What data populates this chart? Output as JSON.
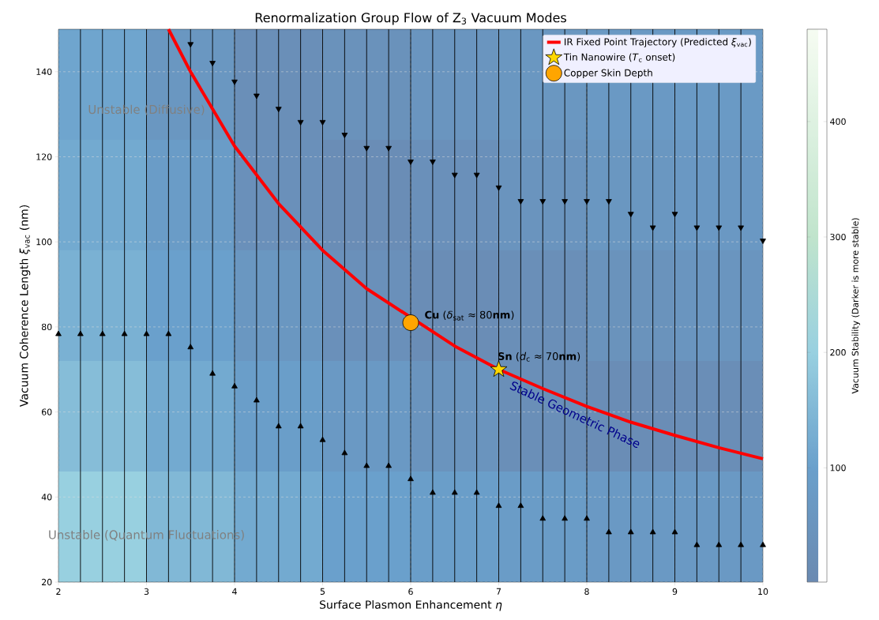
{
  "chart_data": [
    {
      "type": "heatmap",
      "categories": [
        null,
        null,
        null,
        null,
        null,
        null,
        null,
        null
      ],
      "y_categories": [
        null,
        null,
        null,
        null,
        null
      ],
      "cells": [
        [
          110,
          60,
          25,
          35,
          50,
          60,
          70,
          75
        ],
        [
          120,
          80,
          30,
          15,
          30,
          45,
          60,
          65
        ],
        [
          135,
          100,
          60,
          30,
          15,
          25,
          40,
          50
        ],
        [
          160,
          120,
          90,
          70,
          45,
          25,
          15,
          20
        ],
        [
          200,
          150,
          120,
          100,
          90,
          80,
          70,
          70
        ]
      ],
      "clabel": "Vacuum Stability (Darker is more stable)",
      "clim": [
        1,
        480
      ],
      "cticks": [
        100,
        200,
        300,
        400
      ]
    },
    {
      "type": "line",
      "title": "Renormalization Group Flow of Z$_{3}$ Vacuum Modes",
      "xlabel": "Surface Plasmon Enhancement *η*",
      "ylabel": "Vacuum Coherence Length *ξ*$_{vac}$ (nm)",
      "xlim": [
        2,
        10
      ],
      "xticks": [
        2,
        3,
        4,
        5,
        6,
        7,
        8,
        9,
        10
      ],
      "ylim": [
        20,
        150
      ],
      "yticks": [
        20,
        40,
        60,
        80,
        100,
        120,
        140
      ],
      "grid": true,
      "legend": "top right",
      "series": [
        {
          "name": "IR Fixed Point Trajectory (Predicted *ξ*$_{vac}$)",
          "color": "#ff0000",
          "line_style": "solid",
          "marker": "none",
          "x": [
            3.25,
            3.5,
            4,
            4.5,
            5,
            5.5,
            6,
            6.5,
            7,
            7.5,
            8,
            8.5,
            9,
            9.5,
            10
          ],
          "values": [
            150,
            140,
            122.5,
            109,
            98,
            89,
            null,
            75.5,
            70,
            65.5,
            61.3,
            57.6,
            54.5,
            51.6,
            49
          ]
        },
        {
          "type": "scatter",
          "marker": "triangle_down",
          "color": "#000000",
          "x": [
            3.5,
            3.75,
            4,
            4.25,
            4.5,
            4.75,
            5,
            5.25,
            5.5,
            5.75,
            6,
            6.25,
            6.5,
            6.75,
            7,
            7.25,
            7.5,
            7.75,
            8,
            8.25,
            8.5,
            8.75,
            9,
            9.25,
            9.5,
            9.75,
            10
          ],
          "values": [
            146.5,
            142.1,
            137.7,
            134.4,
            131.3,
            128.2,
            128.2,
            125.2,
            122.1,
            122.1,
            118.9,
            118.9,
            115.8,
            115.8,
            112.8,
            109.6,
            109.6,
            109.6,
            109.6,
            109.6,
            106.6,
            103.4,
            106.6,
            103.4,
            103.4,
            103.4,
            100.3
          ]
        },
        {
          "type": "scatter",
          "marker": "triangle",
          "color": "#000000",
          "x": [
            2,
            2.25,
            2.5,
            2.75,
            3,
            3.25,
            3.5,
            3.75,
            4,
            4.25,
            4.5,
            4.75,
            5,
            5.25,
            5.5,
            5.75,
            6,
            6.25,
            6.5,
            6.75,
            7,
            7.25,
            7.5,
            7.75,
            8,
            8.25,
            8.5,
            8.75,
            9,
            9.25,
            9.5,
            9.75,
            10
          ],
          "values": [
            78.3,
            78.3,
            78.3,
            78.3,
            78.3,
            78.3,
            75.2,
            69,
            66,
            62.7,
            56.6,
            56.6,
            53.4,
            50.3,
            47.3,
            47.3,
            44.2,
            41,
            41,
            41,
            37.9,
            37.9,
            34.9,
            34.9,
            34.9,
            31.7,
            31.7,
            31.7,
            31.7,
            28.7,
            28.7,
            28.7,
            28.7
          ]
        },
        {
          "type": "scatter",
          "name": "Tin Nanowire (*T*$_{c}$ onset)",
          "marker": "star",
          "color": "#ffd700",
          "x": [
            7
          ],
          "values": [
            70
          ]
        },
        {
          "type": "scatter",
          "name": "Copper Skin Depth",
          "marker": "circle",
          "color": "#ffa500",
          "x": [
            6
          ],
          "values": [
            81
          ]
        }
      ],
      "ref_lines": [
        {
          "axis": "x",
          "value": 2.25,
          "color": "#000000"
        },
        {
          "axis": "x",
          "value": 2.5,
          "color": "#000000"
        },
        {
          "axis": "x",
          "value": 2.75,
          "color": "#000000"
        },
        {
          "axis": "x",
          "value": 3,
          "color": "#000000"
        },
        {
          "axis": "x",
          "value": 3.25,
          "color": "#000000"
        },
        {
          "axis": "x",
          "value": 3.5,
          "color": "#000000"
        },
        {
          "axis": "x",
          "value": 3.75,
          "color": "#000000"
        },
        {
          "axis": "x",
          "value": 4,
          "color": "#000000"
        },
        {
          "axis": "x",
          "value": 4.25,
          "color": "#000000"
        },
        {
          "axis": "x",
          "value": 4.5,
          "color": "#000000"
        },
        {
          "axis": "x",
          "value": 4.75,
          "color": "#000000"
        },
        {
          "axis": "x",
          "value": 5,
          "color": "#000000"
        },
        {
          "axis": "x",
          "value": 5.25,
          "color": "#000000"
        },
        {
          "axis": "x",
          "value": 5.5,
          "color": "#000000"
        },
        {
          "axis": "x",
          "value": 5.75,
          "color": "#000000"
        },
        {
          "axis": "x",
          "value": 6,
          "color": "#000000"
        },
        {
          "axis": "x",
          "value": 6.25,
          "color": "#000000"
        },
        {
          "axis": "x",
          "value": 6.5,
          "color": "#000000"
        },
        {
          "axis": "x",
          "value": 6.75,
          "color": "#000000"
        },
        {
          "axis": "x",
          "value": 7,
          "color": "#000000"
        },
        {
          "axis": "x",
          "value": 7.25,
          "color": "#000000"
        },
        {
          "axis": "x",
          "value": 7.5,
          "color": "#000000"
        },
        {
          "axis": "x",
          "value": 7.75,
          "color": "#000000"
        },
        {
          "axis": "x",
          "value": 8,
          "color": "#000000"
        },
        {
          "axis": "x",
          "value": 8.25,
          "color": "#000000"
        },
        {
          "axis": "x",
          "value": 8.5,
          "color": "#000000"
        },
        {
          "axis": "x",
          "value": 8.75,
          "color": "#000000"
        },
        {
          "axis": "x",
          "value": 9,
          "color": "#000000"
        },
        {
          "axis": "x",
          "value": 9.25,
          "color": "#000000"
        },
        {
          "axis": "x",
          "value": 9.5,
          "color": "#000000"
        },
        {
          "axis": "x",
          "value": 9.75,
          "color": "#000000"
        }
      ],
      "annotations": [
        {
          "text": "Unstable (Diffusive)",
          "x": 3.0,
          "y": 131
        },
        {
          "text": "Unstable (Quantum Fluctuations)",
          "x": 3.0,
          "y": 31
        },
        "Stable Geometric Phase",
        "**Cu** (*δ*$_{sat}$ ≈ 80**nm**)",
        "**Sn** (*d*$_{c}$ ≈ 70**nm**)"
      ]
    }
  ]
}
